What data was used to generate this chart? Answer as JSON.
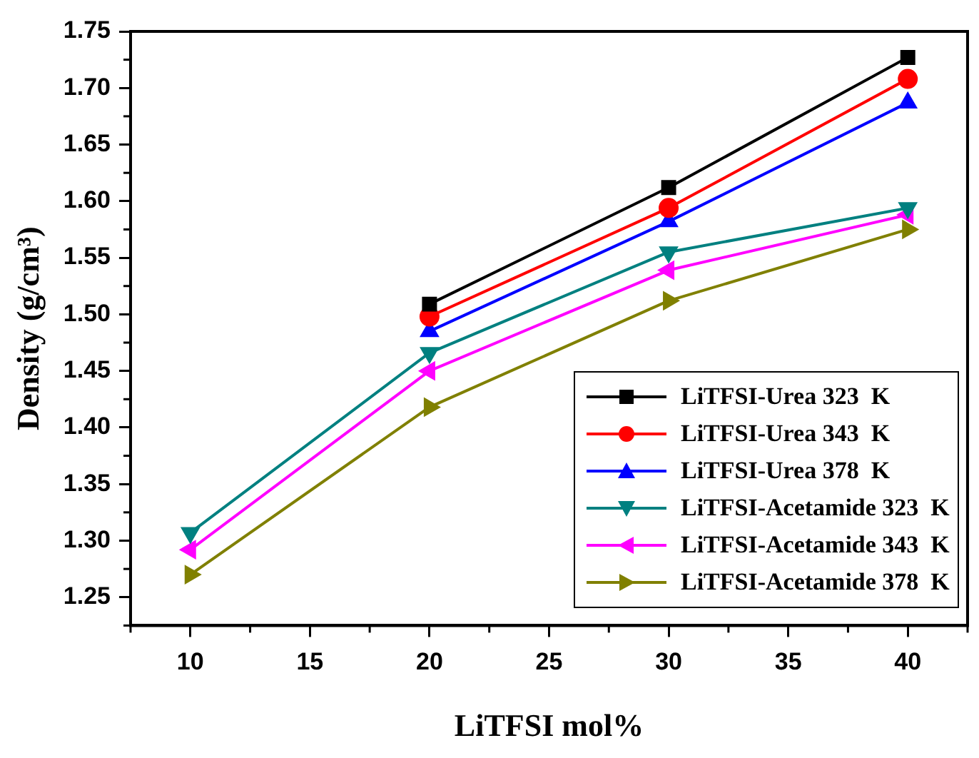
{
  "chart_data": {
    "type": "line",
    "xlabel": "LiTFSI mol%",
    "ylabel": "Density (g/cm³)",
    "xlim": [
      7.5,
      42.5
    ],
    "xticks": [
      10,
      15,
      20,
      25,
      30,
      35,
      40
    ],
    "ylim": [
      1.225,
      1.75
    ],
    "yticks": [
      1.25,
      {
        "value": 1.3,
        "label": "1.30"
      },
      1.35,
      {
        "value": 1.4,
        "label": "1.40"
      },
      1.45,
      {
        "value": 1.5,
        "label": "1.50"
      },
      1.55,
      {
        "value": 1.6,
        "label": "1.60"
      },
      1.65,
      {
        "value": 1.7,
        "label": "1.70"
      },
      1.75
    ],
    "legend": "bottom right",
    "grid": false,
    "line_style": "solid",
    "series": [
      {
        "name": "LiTFSI-Urea 323  K",
        "color": "#000000",
        "marker": "square",
        "x": [
          20,
          30,
          40
        ],
        "values": [
          1.509,
          1.612,
          1.727
        ]
      },
      {
        "name": "LiTFSI-Urea 343  K",
        "color": "#ff0000",
        "marker": "circle",
        "x": [
          20,
          30,
          40
        ],
        "values": [
          1.498,
          1.594,
          1.708
        ]
      },
      {
        "name": "LiTFSI-Urea 378  K",
        "color": "#0000ff",
        "marker": "triangle",
        "x": [
          20,
          30,
          40
        ],
        "values": [
          1.485,
          1.582,
          1.687
        ]
      },
      {
        "name": "LiTFSI-Acetamide 323  K",
        "color": "#008080",
        "marker": "triangle-down",
        "x": [
          10,
          20,
          30,
          40
        ],
        "values": [
          1.307,
          1.466,
          1.555,
          1.594
        ]
      },
      {
        "name": "LiTFSI-Acetamide 343  K",
        "color": "#ff00ff",
        "marker": "triangle-left",
        "x": [
          10,
          20,
          30,
          40
        ],
        "values": [
          1.292,
          1.45,
          1.539,
          1.588
        ]
      },
      {
        "name": "LiTFSI-Acetamide 378  K",
        "color": "#808000",
        "marker": "triangle-right",
        "x": [
          10,
          20,
          30,
          40
        ],
        "values": [
          1.27,
          1.418,
          1.512,
          1.575
        ]
      }
    ]
  }
}
